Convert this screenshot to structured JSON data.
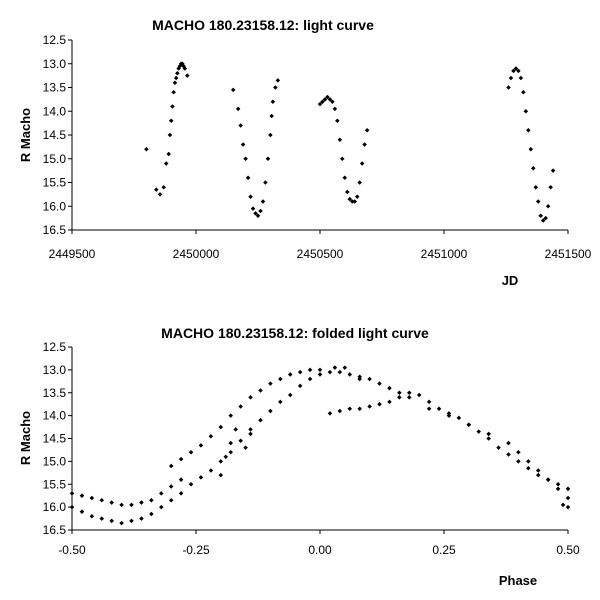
{
  "chart_data": [
    {
      "type": "scatter",
      "title": "MACHO 180.23158.12: light curve",
      "xlabel": "JD",
      "ylabel": "R Macho",
      "xlim": [
        2449500,
        2451500
      ],
      "ylim": [
        12.5,
        16.5
      ],
      "y_inverted": true,
      "grid": false,
      "xticks": [
        "2449500",
        "2450000",
        "2450500",
        "2451000",
        "2451500"
      ],
      "yticks": [
        "12.5",
        "13.0",
        "13.5",
        "14.0",
        "14.5",
        "15.0",
        "15.5",
        "16.0",
        "16.5"
      ],
      "points": [
        [
          2449800,
          14.8
        ],
        [
          2449840,
          15.65
        ],
        [
          2449855,
          15.75
        ],
        [
          2449870,
          15.6
        ],
        [
          2449880,
          15.1
        ],
        [
          2449890,
          14.9
        ],
        [
          2449895,
          14.5
        ],
        [
          2449900,
          14.2
        ],
        [
          2449905,
          13.9
        ],
        [
          2449910,
          13.6
        ],
        [
          2449915,
          13.4
        ],
        [
          2449920,
          13.3
        ],
        [
          2449925,
          13.2
        ],
        [
          2449930,
          13.1
        ],
        [
          2449935,
          13.05
        ],
        [
          2449940,
          13.0
        ],
        [
          2449945,
          13.0
        ],
        [
          2449950,
          13.05
        ],
        [
          2449955,
          13.1
        ],
        [
          2449965,
          13.25
        ],
        [
          2450150,
          13.55
        ],
        [
          2450170,
          13.95
        ],
        [
          2450180,
          14.3
        ],
        [
          2450190,
          14.7
        ],
        [
          2450200,
          15.0
        ],
        [
          2450210,
          15.4
        ],
        [
          2450220,
          15.8
        ],
        [
          2450230,
          16.05
        ],
        [
          2450240,
          16.15
        ],
        [
          2450250,
          16.2
        ],
        [
          2450260,
          16.1
        ],
        [
          2450270,
          15.9
        ],
        [
          2450280,
          15.5
        ],
        [
          2450290,
          15.0
        ],
        [
          2450300,
          14.5
        ],
        [
          2450305,
          14.1
        ],
        [
          2450310,
          13.8
        ],
        [
          2450320,
          13.5
        ],
        [
          2450330,
          13.35
        ],
        [
          2450500,
          13.85
        ],
        [
          2450510,
          13.8
        ],
        [
          2450520,
          13.75
        ],
        [
          2450530,
          13.7
        ],
        [
          2450540,
          13.75
        ],
        [
          2450550,
          13.8
        ],
        [
          2450560,
          13.95
        ],
        [
          2450570,
          14.2
        ],
        [
          2450580,
          14.6
        ],
        [
          2450590,
          15.0
        ],
        [
          2450600,
          15.4
        ],
        [
          2450610,
          15.7
        ],
        [
          2450620,
          15.85
        ],
        [
          2450630,
          15.9
        ],
        [
          2450640,
          15.9
        ],
        [
          2450650,
          15.8
        ],
        [
          2450660,
          15.5
        ],
        [
          2450670,
          15.1
        ],
        [
          2450680,
          14.7
        ],
        [
          2450690,
          14.4
        ],
        [
          2451260,
          13.5
        ],
        [
          2451270,
          13.3
        ],
        [
          2451280,
          13.15
        ],
        [
          2451290,
          13.1
        ],
        [
          2451300,
          13.15
        ],
        [
          2451310,
          13.3
        ],
        [
          2451320,
          13.6
        ],
        [
          2451330,
          14.0
        ],
        [
          2451340,
          14.4
        ],
        [
          2451350,
          14.8
        ],
        [
          2451360,
          15.2
        ],
        [
          2451370,
          15.6
        ],
        [
          2451380,
          15.9
        ],
        [
          2451390,
          16.2
        ],
        [
          2451400,
          16.3
        ],
        [
          2451410,
          16.25
        ],
        [
          2451420,
          16.0
        ],
        [
          2451430,
          15.6
        ],
        [
          2451440,
          15.25
        ]
      ]
    },
    {
      "type": "scatter",
      "title": "MACHO 180.23158.12: folded light curve",
      "xlabel": "Phase",
      "ylabel": "R Macho",
      "xlim": [
        -0.5,
        0.5
      ],
      "ylim": [
        12.5,
        16.5
      ],
      "y_inverted": true,
      "grid": false,
      "xticks": [
        "-0.50",
        "-0.25",
        "0.00",
        "0.25",
        "0.50"
      ],
      "yticks": [
        "12.5",
        "13.0",
        "13.5",
        "14.0",
        "14.5",
        "15.0",
        "15.5",
        "16.0",
        "16.5"
      ],
      "points": [
        [
          -0.5,
          15.7
        ],
        [
          -0.48,
          15.75
        ],
        [
          -0.46,
          15.8
        ],
        [
          -0.44,
          15.85
        ],
        [
          -0.42,
          15.9
        ],
        [
          -0.4,
          15.95
        ],
        [
          -0.38,
          15.95
        ],
        [
          -0.36,
          15.9
        ],
        [
          -0.34,
          15.85
        ],
        [
          -0.32,
          15.7
        ],
        [
          -0.3,
          15.55
        ],
        [
          -0.28,
          15.4
        ],
        [
          -0.5,
          16.0
        ],
        [
          -0.48,
          16.1
        ],
        [
          -0.46,
          16.2
        ],
        [
          -0.44,
          16.25
        ],
        [
          -0.42,
          16.3
        ],
        [
          -0.4,
          16.35
        ],
        [
          -0.38,
          16.3
        ],
        [
          -0.36,
          16.25
        ],
        [
          -0.34,
          16.15
        ],
        [
          -0.32,
          16.0
        ],
        [
          -0.3,
          15.85
        ],
        [
          -0.28,
          15.7
        ],
        [
          -0.26,
          15.5
        ],
        [
          -0.24,
          15.35
        ],
        [
          -0.22,
          15.2
        ],
        [
          -0.2,
          15.0
        ],
        [
          -0.18,
          14.8
        ],
        [
          -0.16,
          14.55
        ],
        [
          -0.14,
          14.3
        ],
        [
          -0.12,
          14.1
        ],
        [
          -0.1,
          13.9
        ],
        [
          -0.08,
          13.7
        ],
        [
          -0.06,
          13.55
        ],
        [
          -0.04,
          13.35
        ],
        [
          -0.02,
          13.2
        ],
        [
          0.0,
          13.1
        ],
        [
          0.02,
          13.05
        ],
        [
          0.04,
          13.05
        ],
        [
          0.06,
          13.1
        ],
        [
          0.08,
          13.2
        ],
        [
          -0.3,
          15.1
        ],
        [
          -0.28,
          14.95
        ],
        [
          -0.26,
          14.8
        ],
        [
          -0.24,
          14.65
        ],
        [
          -0.22,
          14.45
        ],
        [
          -0.2,
          14.25
        ],
        [
          -0.18,
          14.0
        ],
        [
          -0.16,
          13.8
        ],
        [
          -0.14,
          13.6
        ],
        [
          -0.12,
          13.45
        ],
        [
          -0.1,
          13.3
        ],
        [
          -0.08,
          13.2
        ],
        [
          -0.06,
          13.1
        ],
        [
          -0.04,
          13.05
        ],
        [
          -0.02,
          13.0
        ],
        [
          0.0,
          13.0
        ],
        [
          0.03,
          12.95
        ],
        [
          0.05,
          12.95
        ],
        [
          -0.2,
          15.3
        ],
        [
          -0.19,
          14.9
        ],
        [
          -0.18,
          14.6
        ],
        [
          -0.17,
          14.3
        ],
        [
          -0.15,
          14.7
        ],
        [
          -0.14,
          14.4
        ],
        [
          0.02,
          13.95
        ],
        [
          0.04,
          13.9
        ],
        [
          0.06,
          13.85
        ],
        [
          0.08,
          13.85
        ],
        [
          0.1,
          13.8
        ],
        [
          0.12,
          13.75
        ],
        [
          0.14,
          13.7
        ],
        [
          0.16,
          13.6
        ],
        [
          0.18,
          13.5
        ],
        [
          0.2,
          13.55
        ],
        [
          0.22,
          13.7
        ],
        [
          0.24,
          13.85
        ],
        [
          0.26,
          13.95
        ],
        [
          0.28,
          14.05
        ],
        [
          0.3,
          14.2
        ],
        [
          0.32,
          14.35
        ],
        [
          0.34,
          14.5
        ],
        [
          0.36,
          14.7
        ],
        [
          0.38,
          14.85
        ],
        [
          0.4,
          15.0
        ],
        [
          0.42,
          15.15
        ],
        [
          0.44,
          15.3
        ],
        [
          0.46,
          15.4
        ],
        [
          0.48,
          15.5
        ],
        [
          0.5,
          15.6
        ],
        [
          0.08,
          13.15
        ],
        [
          0.1,
          13.2
        ],
        [
          0.12,
          13.3
        ],
        [
          0.14,
          13.4
        ],
        [
          0.16,
          13.5
        ],
        [
          0.18,
          13.6
        ],
        [
          0.22,
          13.85
        ],
        [
          0.26,
          14.0
        ],
        [
          0.3,
          14.2
        ],
        [
          0.34,
          14.4
        ],
        [
          0.38,
          14.6
        ],
        [
          0.4,
          14.8
        ],
        [
          0.42,
          15.0
        ],
        [
          0.44,
          15.2
        ],
        [
          0.46,
          15.4
        ],
        [
          0.48,
          15.6
        ],
        [
          0.5,
          15.8
        ],
        [
          0.49,
          15.95
        ],
        [
          0.5,
          16.0
        ]
      ]
    }
  ]
}
